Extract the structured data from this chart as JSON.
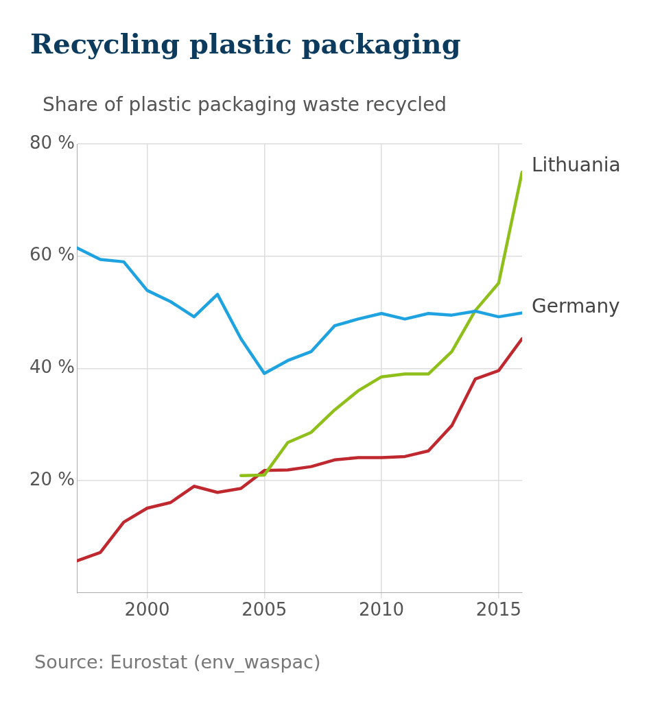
{
  "chart_data": {
    "type": "line",
    "title": "Recycling plastic packaging",
    "subtitle": "Share of plastic packaging waste recycled",
    "x": [
      1997,
      1998,
      1999,
      2000,
      2001,
      2002,
      2003,
      2004,
      2005,
      2006,
      2007,
      2008,
      2009,
      2010,
      2011,
      2012,
      2013,
      2014,
      2015,
      2016
    ],
    "series": [
      {
        "name": "Germany",
        "color": "#1fa3e0",
        "values": [
          61.5,
          59.4,
          59.0,
          53.9,
          51.9,
          49.2,
          53.2,
          45.3,
          39.1,
          41.4,
          43.0,
          47.6,
          48.8,
          49.8,
          48.8,
          49.8,
          49.5,
          50.2,
          49.2,
          49.9
        ]
      },
      {
        "name": "Lithuania",
        "color": "#8fbf1a",
        "values": [
          null,
          null,
          null,
          null,
          null,
          null,
          null,
          20.9,
          21.0,
          26.8,
          28.6,
          32.6,
          36.0,
          38.5,
          39.0,
          39.0,
          43.0,
          50.3,
          55.2,
          75.0
        ]
      },
      {
        "color": "#c0282f",
        "values": [
          5.7,
          7.2,
          12.6,
          15.1,
          16.1,
          19.0,
          17.9,
          18.6,
          21.8,
          21.9,
          22.5,
          23.7,
          24.1,
          24.1,
          24.3,
          25.3,
          29.8,
          38.1,
          39.6,
          45.3
        ]
      }
    ],
    "xlim": [
      1997,
      2016
    ],
    "xticks": [
      2000,
      2005,
      2010,
      2015
    ],
    "ylim": [
      0,
      80
    ],
    "yticks": [
      {
        "value": 20,
        "label": "20 %"
      },
      {
        "value": 40,
        "label": "40 %"
      },
      {
        "value": 60,
        "label": "60 %"
      },
      {
        "value": 80,
        "label": "80 %"
      }
    ],
    "grid": true,
    "legend": false,
    "marker": "none",
    "line_style": "solid",
    "annotations": [
      "Source: Eurostat (env_waspac)"
    ]
  }
}
